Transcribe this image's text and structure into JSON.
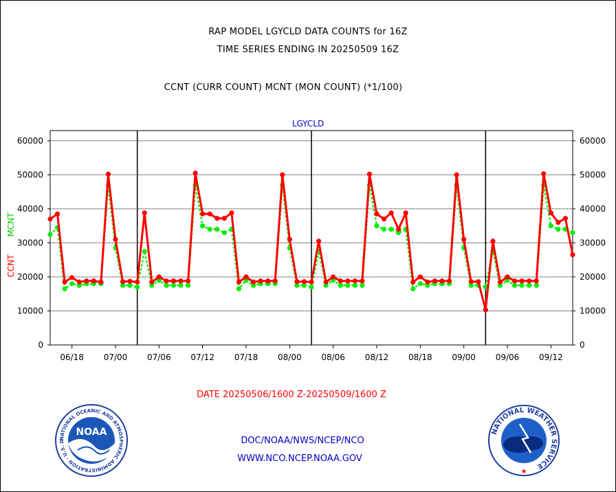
{
  "header": {
    "title": "RAP MODEL LGYCLD DATA COUNTS for 16Z",
    "subtitle": "TIME SERIES ENDING IN 20250509 16Z",
    "legend_text": "CCNT (CURR COUNT) MCNT (MON COUNT) (*1/100)"
  },
  "footer": {
    "date_range": "DATE 20250506/1600 Z-20250509/1600 Z",
    "link1": "DOC/NOAA/NWS/NCEP/NCO",
    "link2": "WWW.NCO.NCEP.NOAA.GOV"
  },
  "logos": {
    "noaa_word": "NOAA",
    "noaa_ring": "NATIONAL OCEANIC AND ATMOSPHERIC ADMINISTRATION · U.S. DEPARTMENT OF COMMERCE ·",
    "nws_ring": "NATIONAL WEATHER SERVICE"
  },
  "colors": {
    "ccnt": "#ff0000",
    "mcnt": "#00ee00",
    "panel_title": "#0000cc",
    "footer_red": "#ff0000",
    "footer_blue": "#0000cc"
  },
  "chart_data": {
    "type": "line",
    "title": "LGYCLD",
    "ylabel_ccnt": "CCNT",
    "ylabel_mcnt": "MCNT",
    "ylim": [
      0,
      63000
    ],
    "yticks": [
      0,
      10000,
      20000,
      30000,
      40000,
      50000,
      60000
    ],
    "ytick_labels": [
      "0",
      "10000",
      "20000",
      "30000",
      "40000",
      "50000",
      "60000"
    ],
    "grid": true,
    "x_tick_labels": [
      {
        "label": "06/18",
        "index": 3
      },
      {
        "label": "07/00",
        "index": 9
      },
      {
        "label": "07/06",
        "index": 15
      },
      {
        "label": "07/12",
        "index": 21
      },
      {
        "label": "07/18",
        "index": 27
      },
      {
        "label": "08/00",
        "index": 33
      },
      {
        "label": "08/06",
        "index": 39
      },
      {
        "label": "08/12",
        "index": 45
      },
      {
        "label": "08/18",
        "index": 51
      },
      {
        "label": "09/00",
        "index": 57
      },
      {
        "label": "09/06",
        "index": 63
      },
      {
        "label": "09/12",
        "index": 69
      }
    ],
    "day_boundaries": [
      12,
      36,
      60
    ],
    "x_index_range": [
      0,
      72
    ],
    "series": [
      {
        "name": "CCNT",
        "color": "#ff0000",
        "values": [
          37000,
          38500,
          18500,
          19800,
          18500,
          18800,
          18800,
          18500,
          50200,
          31000,
          18600,
          18700,
          18500,
          38800,
          18500,
          20000,
          18800,
          18800,
          18800,
          18800,
          50500,
          38500,
          38500,
          37200,
          37200,
          38800,
          18500,
          20000,
          18500,
          18800,
          18800,
          18800,
          50000,
          31000,
          18600,
          18600,
          18500,
          30500,
          18500,
          20000,
          18800,
          18800,
          18800,
          18800,
          50200,
          38500,
          37000,
          38800,
          34000,
          38800,
          18500,
          20000,
          18500,
          18800,
          18800,
          18800,
          50000,
          31000,
          18600,
          18600,
          10300,
          30500,
          18500,
          20000,
          18800,
          18800,
          18800,
          18800,
          50300,
          38800,
          36000,
          37200,
          26500
        ]
      },
      {
        "name": "MCNT",
        "color": "#00ee00",
        "values": [
          32500,
          34500,
          16500,
          18000,
          17500,
          18000,
          18000,
          18000,
          47000,
          28500,
          17500,
          17500,
          17000,
          27500,
          17500,
          19000,
          17500,
          17500,
          17500,
          17500,
          47000,
          35000,
          34000,
          34000,
          33000,
          34000,
          16500,
          19000,
          17500,
          18000,
          18000,
          18000,
          47000,
          28500,
          17500,
          17500,
          17000,
          27500,
          17500,
          19000,
          17500,
          17500,
          17500,
          17500,
          47000,
          35000,
          34000,
          34000,
          33000,
          34000,
          16500,
          18000,
          17500,
          18000,
          18000,
          18000,
          47000,
          28500,
          17500,
          17500,
          17000,
          27500,
          17500,
          19000,
          17500,
          17500,
          17500,
          17500,
          47000,
          35000,
          34000,
          34000,
          33000
        ]
      }
    ]
  }
}
